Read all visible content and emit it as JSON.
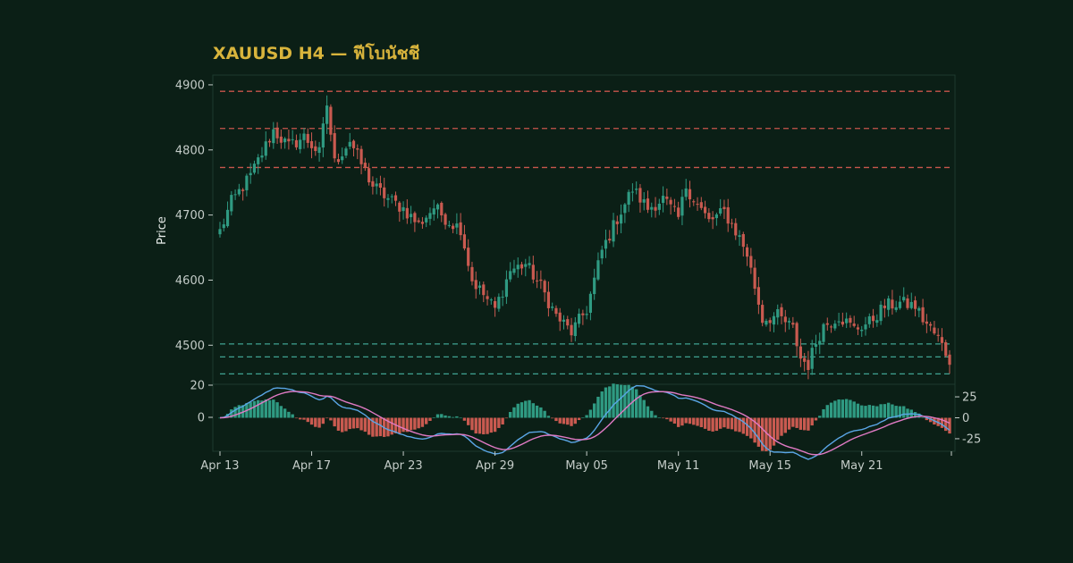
{
  "chart": {
    "title": "XAUUSD H4 — ฟีโบนัชชี",
    "ylabel": "Price"
  },
  "colors": {
    "background": "#0b1f16",
    "panel": "#0b1f16",
    "frame": "#1c3a2e",
    "title": "#d8b43c",
    "bull": "#2f9a82",
    "bear": "#c95a50",
    "resistance_line": "#c9564c",
    "support_line": "#3fa392",
    "macd_line": "#5aa6e6",
    "signal_line": "#e07ac4",
    "hist_pos": "#2f9a82",
    "hist_neg": "#c95a50"
  },
  "chart_data": [
    {
      "type": "candlestick",
      "title": "XAUUSD H4 — ฟีโบนัชชี",
      "ylabel": "Price",
      "x_ticks": [
        "Apr 13",
        "Apr 17",
        "Apr 23",
        "Apr 29",
        "May 05",
        "May 11",
        "May 15",
        "May 21"
      ],
      "x_tick_index": [
        0,
        24,
        48,
        72,
        96,
        120,
        144,
        168
      ],
      "y_ticks": [
        4500,
        4600,
        4700,
        4800,
        4900
      ],
      "ylim": [
        4440,
        4915
      ],
      "n_bars": 192,
      "close_anchors": [
        [
          0,
          4675
        ],
        [
          3,
          4720
        ],
        [
          8,
          4760
        ],
        [
          14,
          4830
        ],
        [
          18,
          4805
        ],
        [
          22,
          4820
        ],
        [
          26,
          4795
        ],
        [
          28,
          4870
        ],
        [
          30,
          4780
        ],
        [
          34,
          4815
        ],
        [
          36,
          4790
        ],
        [
          40,
          4745
        ],
        [
          44,
          4725
        ],
        [
          48,
          4710
        ],
        [
          52,
          4685
        ],
        [
          56,
          4712
        ],
        [
          60,
          4690
        ],
        [
          63,
          4680
        ],
        [
          66,
          4600
        ],
        [
          70,
          4570
        ],
        [
          72,
          4555
        ],
        [
          76,
          4615
        ],
        [
          80,
          4625
        ],
        [
          84,
          4590
        ],
        [
          88,
          4545
        ],
        [
          92,
          4520
        ],
        [
          96,
          4555
        ],
        [
          100,
          4645
        ],
        [
          104,
          4695
        ],
        [
          108,
          4740
        ],
        [
          112,
          4710
        ],
        [
          116,
          4725
        ],
        [
          120,
          4695
        ],
        [
          122,
          4745
        ],
        [
          124,
          4725
        ],
        [
          128,
          4690
        ],
        [
          132,
          4705
        ],
        [
          136,
          4665
        ],
        [
          138,
          4640
        ],
        [
          140,
          4590
        ],
        [
          142,
          4540
        ],
        [
          146,
          4545
        ],
        [
          150,
          4525
        ],
        [
          152,
          4480
        ],
        [
          154,
          4470
        ],
        [
          156,
          4505
        ],
        [
          158,
          4530
        ],
        [
          162,
          4545
        ],
        [
          166,
          4525
        ],
        [
          170,
          4535
        ],
        [
          174,
          4560
        ],
        [
          178,
          4565
        ],
        [
          182,
          4560
        ],
        [
          184,
          4540
        ],
        [
          188,
          4510
        ],
        [
          191,
          4478
        ]
      ],
      "resistance_levels": [
        4890,
        4833,
        4773
      ],
      "support_levels": [
        4502,
        4482,
        4456
      ]
    },
    {
      "type": "macd",
      "y_ticks": [
        25,
        0,
        -25
      ],
      "ylim": [
        -40,
        40
      ],
      "series": [
        {
          "name": "",
          "values": "MACD line"
        },
        {
          "name": "",
          "values": "Signal line"
        }
      ]
    }
  ]
}
